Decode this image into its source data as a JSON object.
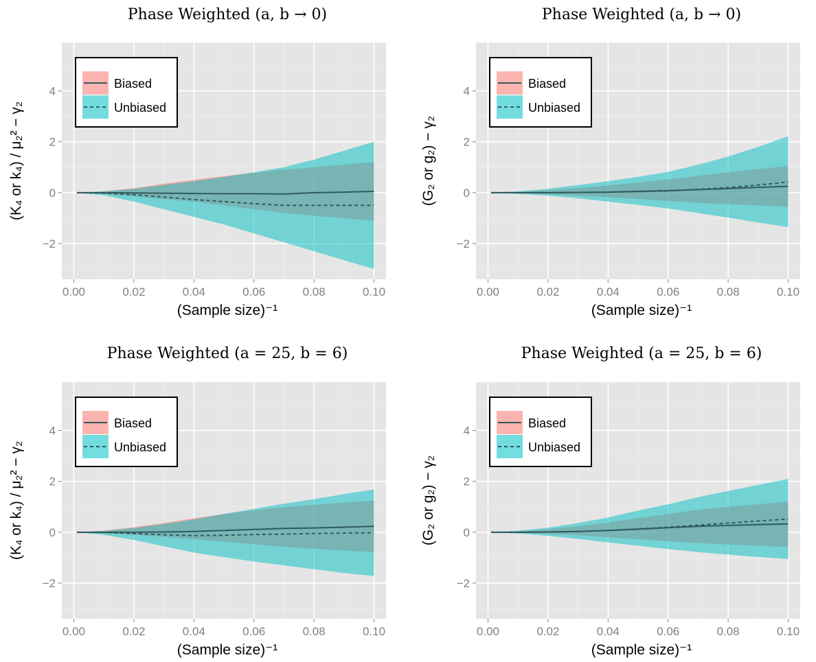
{
  "chart_data": [
    {
      "type": "area",
      "title": "Phase Weighted (a, b → 0)",
      "xlabel": "(Sample size)⁻¹",
      "ylabel": "(K₄ or k₄) / μ₂² − γ₂",
      "xlim": [
        -0.004,
        0.104
      ],
      "ylim": [
        -3.4,
        5.9
      ],
      "x_ticks": [
        "0.00",
        "0.02",
        "0.04",
        "0.06",
        "0.08",
        "0.10"
      ],
      "y_ticks": [
        "−2",
        "0",
        "2",
        "4"
      ],
      "grid": true,
      "legend_position": "top-left",
      "x": [
        0.001,
        0.01,
        0.02,
        0.03,
        0.04,
        0.05,
        0.06,
        0.07,
        0.08,
        0.09,
        0.1
      ],
      "series": [
        {
          "name": "Biased",
          "color": "#F8766D",
          "mean": [
            0,
            0,
            -0.01,
            -0.02,
            -0.03,
            -0.04,
            -0.04,
            -0.05,
            0,
            0.02,
            0.05
          ],
          "lower": [
            0,
            -0.05,
            -0.15,
            -0.25,
            -0.35,
            -0.5,
            -0.65,
            -0.8,
            -0.9,
            -1.0,
            -1.1
          ],
          "upper": [
            0,
            0.05,
            0.18,
            0.35,
            0.5,
            0.65,
            0.78,
            0.9,
            1.0,
            1.1,
            1.2
          ]
        },
        {
          "name": "Unbiased",
          "color": "#00BFC4",
          "mean": [
            0,
            -0.02,
            -0.08,
            -0.17,
            -0.27,
            -0.35,
            -0.43,
            -0.5,
            -0.5,
            -0.5,
            -0.5
          ],
          "lower": [
            0,
            -0.1,
            -0.35,
            -0.65,
            -0.95,
            -1.25,
            -1.6,
            -1.95,
            -2.3,
            -2.65,
            -3.0
          ],
          "upper": [
            0,
            0.05,
            0.15,
            0.3,
            0.45,
            0.62,
            0.8,
            1.0,
            1.3,
            1.65,
            2.0
          ]
        }
      ]
    },
    {
      "type": "area",
      "title": "Phase Weighted (a, b → 0)",
      "xlabel": "(Sample size)⁻¹",
      "ylabel": "(G₂ or g₂) − γ₂",
      "xlim": [
        -0.004,
        0.104
      ],
      "ylim": [
        -3.4,
        5.9
      ],
      "x_ticks": [
        "0.00",
        "0.02",
        "0.04",
        "0.06",
        "0.08",
        "0.10"
      ],
      "y_ticks": [
        "−2",
        "0",
        "2",
        "4"
      ],
      "grid": true,
      "legend_position": "top-left",
      "x": [
        0.001,
        0.01,
        0.02,
        0.03,
        0.04,
        0.05,
        0.06,
        0.07,
        0.08,
        0.09,
        0.1
      ],
      "series": [
        {
          "name": "Biased",
          "color": "#F8766D",
          "mean": [
            0,
            0,
            0,
            0.01,
            0.02,
            0.05,
            0.08,
            0.12,
            0.16,
            0.21,
            0.25
          ],
          "lower": [
            0,
            -0.02,
            -0.06,
            -0.12,
            -0.18,
            -0.25,
            -0.32,
            -0.4,
            -0.45,
            -0.5,
            -0.55
          ],
          "upper": [
            0,
            0.03,
            0.1,
            0.18,
            0.28,
            0.4,
            0.52,
            0.66,
            0.8,
            0.93,
            1.05
          ]
        },
        {
          "name": "Unbiased",
          "color": "#00BFC4",
          "mean": [
            0,
            0,
            0,
            0.01,
            0.02,
            0.04,
            0.07,
            0.13,
            0.2,
            0.3,
            0.42
          ],
          "lower": [
            0,
            -0.05,
            -0.12,
            -0.22,
            -0.35,
            -0.48,
            -0.62,
            -0.8,
            -0.98,
            -1.17,
            -1.35
          ],
          "upper": [
            0,
            0.05,
            0.15,
            0.3,
            0.45,
            0.62,
            0.82,
            1.1,
            1.42,
            1.8,
            2.22
          ]
        }
      ]
    },
    {
      "type": "area",
      "title": "Phase Weighted (a = 25, b = 6)",
      "xlabel": "(Sample size)⁻¹",
      "ylabel": "(K₄ or k₄) / μ₂² − γ₂",
      "xlim": [
        -0.004,
        0.104
      ],
      "ylim": [
        -3.4,
        5.9
      ],
      "x_ticks": [
        "0.00",
        "0.02",
        "0.04",
        "0.06",
        "0.08",
        "0.10"
      ],
      "y_ticks": [
        "−2",
        "0",
        "2",
        "4"
      ],
      "grid": true,
      "legend_position": "top-left",
      "x": [
        0.001,
        0.01,
        0.02,
        0.03,
        0.04,
        0.05,
        0.06,
        0.07,
        0.08,
        0.09,
        0.1
      ],
      "series": [
        {
          "name": "Biased",
          "color": "#F8766D",
          "mean": [
            0,
            0,
            0,
            0.01,
            0.03,
            0.07,
            0.11,
            0.15,
            0.17,
            0.2,
            0.23
          ],
          "lower": [
            0,
            -0.04,
            -0.1,
            -0.18,
            -0.27,
            -0.37,
            -0.47,
            -0.57,
            -0.65,
            -0.72,
            -0.78
          ],
          "upper": [
            0,
            0.06,
            0.2,
            0.36,
            0.55,
            0.72,
            0.86,
            0.98,
            1.08,
            1.16,
            1.24
          ]
        },
        {
          "name": "Unbiased",
          "color": "#00BFC4",
          "mean": [
            0,
            -0.01,
            -0.05,
            -0.1,
            -0.13,
            -0.12,
            -0.09,
            -0.07,
            -0.05,
            -0.03,
            -0.02
          ],
          "lower": [
            0,
            -0.1,
            -0.3,
            -0.55,
            -0.8,
            -0.98,
            -1.15,
            -1.3,
            -1.45,
            -1.6,
            -1.72
          ],
          "upper": [
            0,
            0.05,
            0.17,
            0.32,
            0.5,
            0.72,
            0.92,
            1.12,
            1.3,
            1.5,
            1.68
          ]
        }
      ]
    },
    {
      "type": "area",
      "title": "Phase Weighted (a = 25, b = 6)",
      "xlabel": "(Sample size)⁻¹",
      "ylabel": "(G₂ or g₂) − γ₂",
      "xlim": [
        -0.004,
        0.104
      ],
      "ylim": [
        -3.4,
        5.9
      ],
      "x_ticks": [
        "0.00",
        "0.02",
        "0.04",
        "0.06",
        "0.08",
        "0.10"
      ],
      "y_ticks": [
        "−2",
        "0",
        "2",
        "4"
      ],
      "grid": true,
      "legend_position": "top-left",
      "x": [
        0.001,
        0.01,
        0.02,
        0.03,
        0.04,
        0.05,
        0.06,
        0.07,
        0.08,
        0.09,
        0.1
      ],
      "series": [
        {
          "name": "Biased",
          "color": "#F8766D",
          "mean": [
            0,
            0,
            0.01,
            0.03,
            0.07,
            0.12,
            0.18,
            0.23,
            0.27,
            0.3,
            0.33
          ],
          "lower": [
            0,
            -0.02,
            -0.06,
            -0.12,
            -0.2,
            -0.27,
            -0.35,
            -0.42,
            -0.48,
            -0.53,
            -0.58
          ],
          "upper": [
            0,
            0.04,
            0.12,
            0.24,
            0.38,
            0.55,
            0.72,
            0.88,
            1.0,
            1.1,
            1.2
          ]
        },
        {
          "name": "Unbiased",
          "color": "#00BFC4",
          "mean": [
            0,
            0,
            0.01,
            0.03,
            0.07,
            0.13,
            0.2,
            0.28,
            0.36,
            0.44,
            0.52
          ],
          "lower": [
            0,
            -0.05,
            -0.14,
            -0.26,
            -0.4,
            -0.53,
            -0.66,
            -0.78,
            -0.88,
            -0.97,
            -1.05
          ],
          "upper": [
            0,
            0.06,
            0.18,
            0.36,
            0.58,
            0.85,
            1.1,
            1.38,
            1.62,
            1.86,
            2.1
          ]
        }
      ]
    }
  ]
}
